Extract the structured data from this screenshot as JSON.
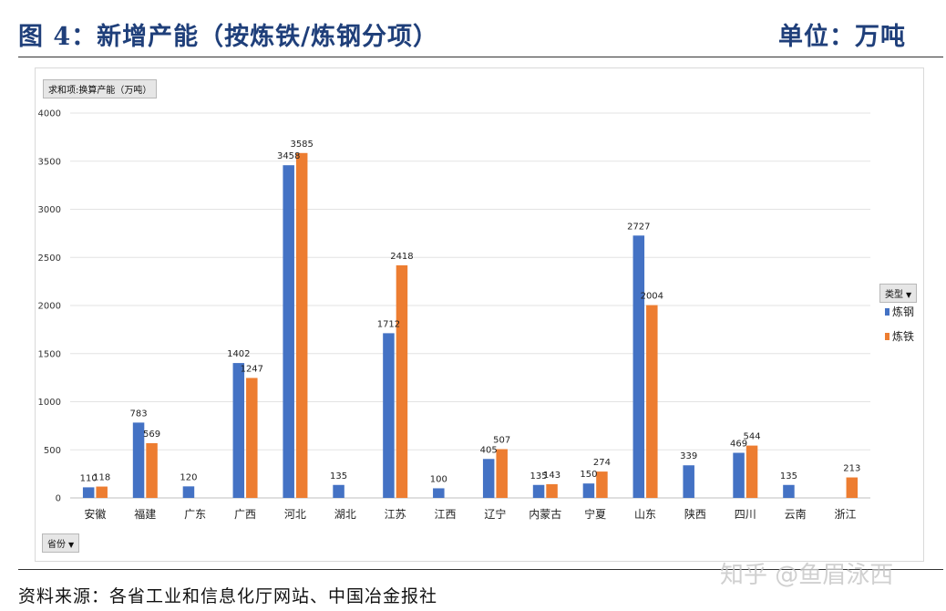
{
  "header": {
    "title": "图 4：新增产能（按炼铁/炼钢分项）",
    "unit": "单位：万吨"
  },
  "pivot": {
    "value_field": "求和项:换算产能（万吨）",
    "row_field": "省份",
    "col_field": "类型"
  },
  "chart_data": {
    "type": "bar",
    "categories": [
      "安徽",
      "福建",
      "广东",
      "广西",
      "河北",
      "湖北",
      "江苏",
      "江西",
      "辽宁",
      "内蒙古",
      "宁夏",
      "山东",
      "陕西",
      "四川",
      "云南",
      "浙江"
    ],
    "series": [
      {
        "name": "炼钢",
        "color": "#4472c4",
        "values": [
          110,
          783,
          120,
          1402,
          3458,
          135,
          1712,
          100,
          405,
          135,
          150,
          2727,
          339,
          469,
          135,
          null
        ]
      },
      {
        "name": "炼铁",
        "color": "#ed7d31",
        "values": [
          118,
          569,
          null,
          1247,
          3585,
          null,
          2418,
          null,
          507,
          143,
          274,
          2004,
          null,
          544,
          null,
          213
        ]
      }
    ],
    "ylim": [
      0,
      4000
    ],
    "yticks": [
      0,
      500,
      1000,
      1500,
      2000,
      2500,
      3000,
      3500,
      4000
    ],
    "grid": true,
    "legend_placement": "right"
  },
  "footer": {
    "source": "资料来源：各省工业和信息化厅网站、中国冶金报社"
  },
  "watermark": "知乎 @鱼眉泳西"
}
